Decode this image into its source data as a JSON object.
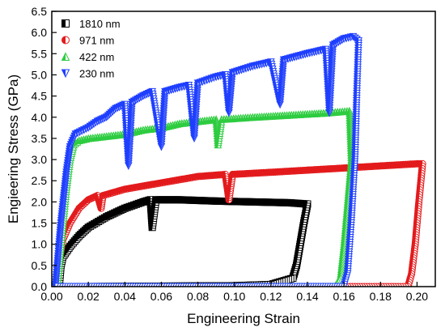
{
  "chart_data": {
    "type": "scatter",
    "title": "",
    "xlabel": "Engineering Strain",
    "ylabel": "Engieering Stress (GPa)",
    "xlim": [
      0.0,
      0.21
    ],
    "ylim": [
      0.0,
      6.5
    ],
    "xticks": [
      0.0,
      0.02,
      0.04,
      0.06,
      0.08,
      0.1,
      0.12,
      0.14,
      0.16,
      0.18,
      0.2
    ],
    "xtick_labels": [
      "0.00",
      "0.02",
      "0.04",
      "0.06",
      "0.08",
      "0.10",
      "0.12",
      "0.14",
      "0.16",
      "0.18",
      "0.20"
    ],
    "yticks": [
      0.0,
      0.5,
      1.0,
      1.5,
      2.0,
      2.5,
      3.0,
      3.5,
      4.0,
      4.5,
      5.0,
      5.5,
      6.0,
      6.5
    ],
    "ytick_labels": [
      "0.0",
      "0.5",
      "1.0",
      "1.5",
      "2.0",
      "2.5",
      "3.0",
      "3.5",
      "4.0",
      "4.5",
      "5.0",
      "5.5",
      "6.0",
      "6.5"
    ],
    "grid": false,
    "legend_position": "top-left",
    "series": [
      {
        "name": "1810 nm",
        "color": "#000000",
        "marker": "half-square",
        "points": [
          [
            0.004,
            0.0
          ],
          [
            0.005,
            0.5
          ],
          [
            0.006,
            0.7
          ],
          [
            0.01,
            0.95
          ],
          [
            0.015,
            1.2
          ],
          [
            0.02,
            1.4
          ],
          [
            0.03,
            1.65
          ],
          [
            0.04,
            1.85
          ],
          [
            0.05,
            2.0
          ],
          [
            0.054,
            2.05
          ],
          [
            0.055,
            1.4
          ],
          [
            0.057,
            2.05
          ],
          [
            0.07,
            2.05
          ],
          [
            0.09,
            2.02
          ],
          [
            0.11,
            2.0
          ],
          [
            0.13,
            1.98
          ],
          [
            0.14,
            1.95
          ],
          [
            0.138,
            1.5
          ],
          [
            0.136,
            1.0
          ],
          [
            0.134,
            0.5
          ],
          [
            0.132,
            0.2
          ],
          [
            0.12,
            0.05
          ],
          [
            0.1,
            0.02
          ],
          [
            0.06,
            0.01
          ],
          [
            0.02,
            0.0
          ],
          [
            0.005,
            0.0
          ]
        ]
      },
      {
        "name": "971 nm",
        "color": "#e31a1c",
        "marker": "half-circle",
        "points": [
          [
            0.003,
            0.0
          ],
          [
            0.004,
            0.6
          ],
          [
            0.006,
            1.1
          ],
          [
            0.01,
            1.5
          ],
          [
            0.015,
            1.85
          ],
          [
            0.02,
            2.05
          ],
          [
            0.025,
            2.15
          ],
          [
            0.027,
            1.85
          ],
          [
            0.028,
            2.15
          ],
          [
            0.04,
            2.3
          ],
          [
            0.06,
            2.45
          ],
          [
            0.08,
            2.6
          ],
          [
            0.095,
            2.65
          ],
          [
            0.097,
            2.05
          ],
          [
            0.099,
            2.65
          ],
          [
            0.12,
            2.7
          ],
          [
            0.14,
            2.75
          ],
          [
            0.16,
            2.8
          ],
          [
            0.18,
            2.85
          ],
          [
            0.2,
            2.9
          ],
          [
            0.203,
            2.9
          ],
          [
            0.201,
            2.0
          ],
          [
            0.199,
            1.0
          ],
          [
            0.197,
            0.3
          ],
          [
            0.195,
            0.0
          ],
          [
            0.17,
            0.0
          ],
          [
            0.12,
            0.0
          ],
          [
            0.06,
            0.0
          ],
          [
            0.003,
            0.0
          ]
        ]
      },
      {
        "name": "422 nm",
        "color": "#2ecc40",
        "marker": "half-triangle-up",
        "points": [
          [
            0.003,
            0.0
          ],
          [
            0.006,
            1.4
          ],
          [
            0.008,
            2.3
          ],
          [
            0.01,
            3.0
          ],
          [
            0.012,
            3.35
          ],
          [
            0.015,
            3.45
          ],
          [
            0.02,
            3.5
          ],
          [
            0.03,
            3.55
          ],
          [
            0.04,
            3.6
          ],
          [
            0.05,
            3.7
          ],
          [
            0.06,
            3.75
          ],
          [
            0.07,
            3.85
          ],
          [
            0.08,
            3.9
          ],
          [
            0.09,
            3.95
          ],
          [
            0.091,
            3.35
          ],
          [
            0.093,
            3.95
          ],
          [
            0.11,
            4.0
          ],
          [
            0.13,
            4.05
          ],
          [
            0.15,
            4.1
          ],
          [
            0.163,
            4.15
          ],
          [
            0.164,
            3.0
          ],
          [
            0.162,
            2.0
          ],
          [
            0.16,
            1.0
          ],
          [
            0.158,
            0.2
          ],
          [
            0.155,
            0.0
          ],
          [
            0.12,
            0.0
          ],
          [
            0.08,
            0.0
          ],
          [
            0.003,
            0.0
          ]
        ]
      },
      {
        "name": "230 nm",
        "color": "#1f3fff",
        "marker": "half-triangle-down",
        "points": [
          [
            0.002,
            0.0
          ],
          [
            0.005,
            1.5
          ],
          [
            0.008,
            2.7
          ],
          [
            0.01,
            3.3
          ],
          [
            0.013,
            3.6
          ],
          [
            0.02,
            3.75
          ],
          [
            0.025,
            3.9
          ],
          [
            0.03,
            4.0
          ],
          [
            0.035,
            4.2
          ],
          [
            0.04,
            4.3
          ],
          [
            0.042,
            2.85
          ],
          [
            0.044,
            4.35
          ],
          [
            0.05,
            4.5
          ],
          [
            0.055,
            4.6
          ],
          [
            0.06,
            3.3
          ],
          [
            0.062,
            4.6
          ],
          [
            0.07,
            4.7
          ],
          [
            0.075,
            4.75
          ],
          [
            0.078,
            3.5
          ],
          [
            0.08,
            4.8
          ],
          [
            0.09,
            4.95
          ],
          [
            0.095,
            5.0
          ],
          [
            0.097,
            4.1
          ],
          [
            0.099,
            5.05
          ],
          [
            0.11,
            5.2
          ],
          [
            0.12,
            5.3
          ],
          [
            0.125,
            4.3
          ],
          [
            0.127,
            5.35
          ],
          [
            0.14,
            5.5
          ],
          [
            0.15,
            5.6
          ],
          [
            0.152,
            4.1
          ],
          [
            0.154,
            5.7
          ],
          [
            0.16,
            5.85
          ],
          [
            0.165,
            5.9
          ],
          [
            0.168,
            5.8
          ],
          [
            0.167,
            4.5
          ],
          [
            0.166,
            3.0
          ],
          [
            0.164,
            1.5
          ],
          [
            0.162,
            0.3
          ],
          [
            0.16,
            0.0
          ],
          [
            0.12,
            0.0
          ],
          [
            0.08,
            0.0
          ],
          [
            0.002,
            0.0
          ]
        ]
      }
    ]
  }
}
